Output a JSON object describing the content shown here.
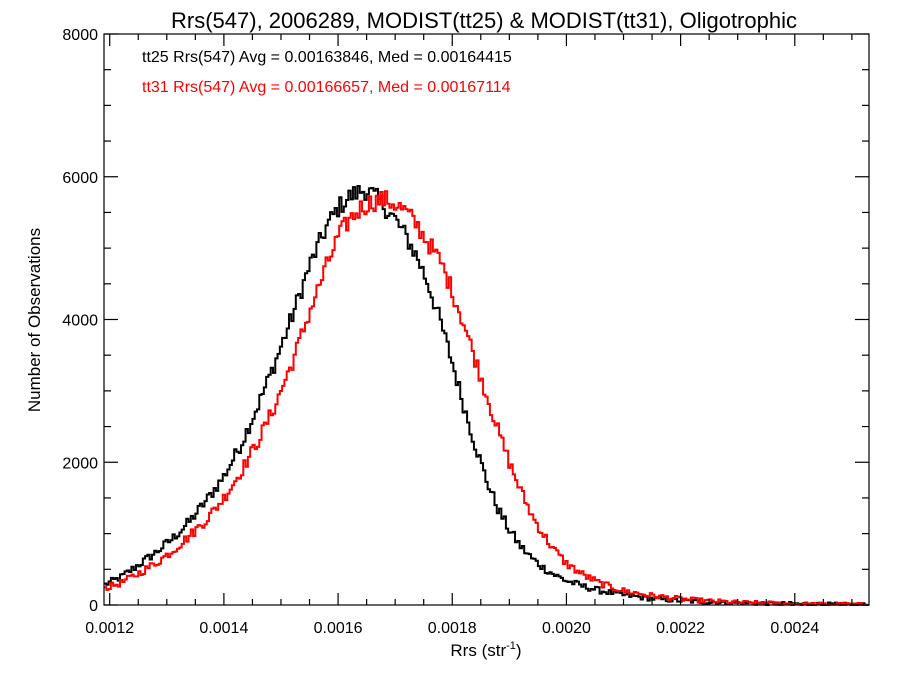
{
  "chart_data": {
    "type": "line",
    "title": "Rrs(547), 2006289, MODIST(tt25) & MODIST(tt31), Oligotrophic",
    "xlabel_main": "Rrs (str",
    "xlabel_sup": "-1",
    "xlabel_close": ")",
    "ylabel": "Number of Observations",
    "xlim": [
      0.00119,
      0.00253
    ],
    "ylim": [
      0,
      8000
    ],
    "x_ticks": [
      0.0012,
      0.0014,
      0.0016,
      0.0018,
      0.002,
      0.0022,
      0.0024
    ],
    "x_tick_labels": [
      "0.0012",
      "0.0014",
      "0.0016",
      "0.0018",
      "0.0020",
      "0.0022",
      "0.0024"
    ],
    "y_ticks": [
      0,
      2000,
      4000,
      6000,
      8000
    ],
    "y_tick_labels": [
      "0",
      "2000",
      "4000",
      "6000",
      "8000"
    ],
    "grid": false,
    "legend_position": "top-left",
    "series": [
      {
        "legend_text": "tt25 Rrs(547) Avg = 0.00163846, Med = 0.00164415",
        "color": "#000000",
        "x": [
          0.00119,
          0.00122,
          0.00125,
          0.00128,
          0.00131,
          0.00134,
          0.00137,
          0.0014,
          0.00143,
          0.00146,
          0.00149,
          0.00152,
          0.00155,
          0.00158,
          0.0016,
          0.00162,
          0.00164,
          0.00165,
          0.00166,
          0.00168,
          0.0017,
          0.00172,
          0.00174,
          0.00176,
          0.00178,
          0.0018,
          0.00182,
          0.00184,
          0.00186,
          0.00188,
          0.0019,
          0.00192,
          0.00194,
          0.00196,
          0.00198,
          0.002,
          0.00203,
          0.00206,
          0.0021,
          0.00215,
          0.0022,
          0.00225,
          0.0023,
          0.0024,
          0.00253
        ],
        "values": [
          280,
          390,
          560,
          730,
          930,
          1170,
          1470,
          1800,
          2250,
          2800,
          3400,
          4050,
          4750,
          5300,
          5560,
          5720,
          5800,
          5820,
          5750,
          5600,
          5400,
          5150,
          4850,
          4450,
          3950,
          3400,
          2800,
          2250,
          1750,
          1350,
          1050,
          820,
          650,
          520,
          420,
          340,
          260,
          200,
          140,
          90,
          60,
          40,
          30,
          15,
          5
        ]
      },
      {
        "legend_text": "tt31 Rrs(547) Avg = 0.00166657, Med = 0.00167114",
        "color": "#ff0000",
        "x": [
          0.00119,
          0.00122,
          0.00125,
          0.00128,
          0.00131,
          0.00134,
          0.00137,
          0.0014,
          0.00143,
          0.00146,
          0.00149,
          0.00152,
          0.00155,
          0.00158,
          0.0016,
          0.00162,
          0.00164,
          0.00166,
          0.00168,
          0.0017,
          0.00172,
          0.00174,
          0.00176,
          0.00178,
          0.0018,
          0.00182,
          0.00184,
          0.00186,
          0.00188,
          0.0019,
          0.00192,
          0.00194,
          0.00196,
          0.00198,
          0.002,
          0.00203,
          0.00206,
          0.0021,
          0.00215,
          0.0022,
          0.00225,
          0.0023,
          0.0024,
          0.00253
        ],
        "values": [
          230,
          310,
          440,
          580,
          760,
          970,
          1200,
          1500,
          1870,
          2300,
          2800,
          3400,
          4100,
          4750,
          5150,
          5400,
          5560,
          5650,
          5680,
          5620,
          5500,
          5300,
          5050,
          4800,
          4400,
          3950,
          3450,
          2950,
          2450,
          2000,
          1600,
          1250,
          980,
          760,
          580,
          420,
          300,
          200,
          130,
          85,
          55,
          35,
          15,
          5
        ]
      }
    ]
  }
}
